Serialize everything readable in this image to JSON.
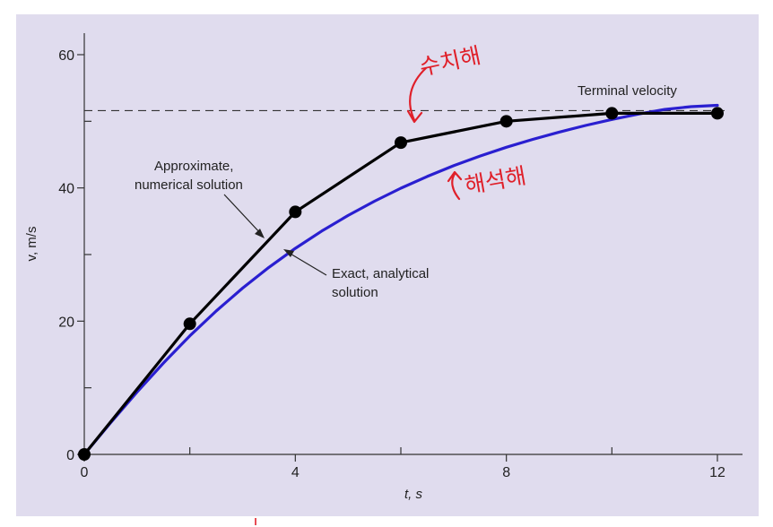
{
  "chart_data": {
    "type": "line",
    "xlabel": "t, s",
    "ylabel": "v, m/s",
    "xlim": [
      0,
      12
    ],
    "ylim": [
      0,
      60
    ],
    "x_ticks": [
      0,
      4,
      8,
      12
    ],
    "x_minor_ticks": [
      2,
      6,
      10
    ],
    "y_ticks": [
      0,
      20,
      40,
      60
    ],
    "y_minor_ticks": [
      10,
      30,
      50
    ],
    "grid": false,
    "terminal_velocity": 51.6,
    "series": [
      {
        "key": "numerical",
        "color": "#000000",
        "markers": true,
        "x": [
          0,
          2,
          4,
          6,
          8,
          10,
          12
        ],
        "y": [
          0,
          19.6,
          36.4,
          46.8,
          50.0,
          51.2,
          51.2
        ]
      },
      {
        "key": "analytical",
        "color": "#2a1fd0",
        "markers": false,
        "x": [
          0,
          0.5,
          1,
          1.5,
          2,
          2.5,
          3,
          3.5,
          4,
          4.5,
          5,
          5.5,
          6,
          6.5,
          7,
          7.5,
          8,
          8.5,
          9,
          9.5,
          10,
          10.5,
          11,
          11.5,
          12
        ],
        "y": [
          0,
          4.76,
          9.36,
          13.72,
          17.8,
          21.53,
          24.95,
          28.08,
          30.93,
          33.52,
          35.87,
          38.01,
          39.96,
          41.72,
          43.33,
          44.78,
          46.1,
          47.29,
          48.38,
          49.37,
          50.27,
          51.08,
          51.78,
          52.2,
          52.4
        ]
      }
    ],
    "annotations": {
      "numerical_label": [
        "Approximate,",
        "numerical solution"
      ],
      "analytical_label": [
        "Exact, analytical",
        "solution"
      ],
      "terminal_label": "Terminal velocity",
      "handwritten_numerical": "수치해",
      "handwritten_analytical": "해석해"
    }
  },
  "colors": {
    "plot_background": "#e0dcee",
    "handwriting": "#e0202a"
  }
}
